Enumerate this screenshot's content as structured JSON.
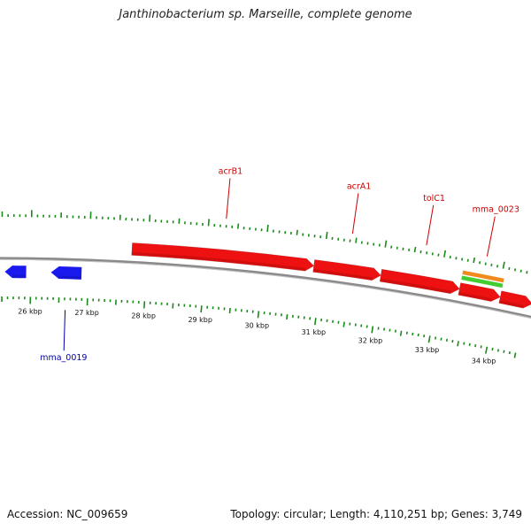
{
  "title": "Janthinobacterium sp. Marseille, complete genome",
  "footer": {
    "accession_label": "Accession:",
    "accession": "NC_009659",
    "topology_label": "Topology:",
    "topology": "circular",
    "length_label": "Length:",
    "length": "4,110,251 bp",
    "genes_label": "Genes:",
    "genes": "3,749"
  },
  "scale": {
    "tick_labels": [
      "26 kbp",
      "27 kbp",
      "28 kbp",
      "29 kbp",
      "30 kbp",
      "31 kbp",
      "32 kbp",
      "33 kbp",
      "34 kbp"
    ]
  },
  "genes": [
    {
      "name": "",
      "strand": "minus",
      "start_kbp": 25.55,
      "end_kbp": 25.92,
      "color": "#1a1aee"
    },
    {
      "name": "mma_0019",
      "strand": "minus",
      "start_kbp": 26.35,
      "end_kbp": 26.88,
      "color": "#1a1aee"
    },
    {
      "name": "acrB1",
      "strand": "plus",
      "start_kbp": 27.73,
      "end_kbp": 30.85,
      "color": "#ee1111"
    },
    {
      "name": "acrA1",
      "strand": "plus",
      "start_kbp": 30.85,
      "end_kbp": 32.0,
      "color": "#ee1111"
    },
    {
      "name": "tolC1",
      "strand": "plus",
      "start_kbp": 32.0,
      "end_kbp": 33.35,
      "color": "#ee1111"
    },
    {
      "name": "mma_0023",
      "strand": "plus",
      "start_kbp": 33.35,
      "end_kbp": 34.05,
      "color": "#ee1111"
    },
    {
      "name": "",
      "strand": "plus",
      "start_kbp": 34.05,
      "end_kbp": 34.6,
      "color": "#ee1111"
    }
  ],
  "features": [
    {
      "kind": "band",
      "start_kbp": 33.35,
      "end_kbp": 34.05,
      "color": "#f08a1c"
    },
    {
      "kind": "band",
      "start_kbp": 33.35,
      "end_kbp": 34.05,
      "color": "#44cc33"
    }
  ],
  "colors": {
    "backbone": "#8a8a8a",
    "tick": "#1a8a1a",
    "plus_label": "#cc0000",
    "minus_label": "#0000aa"
  }
}
